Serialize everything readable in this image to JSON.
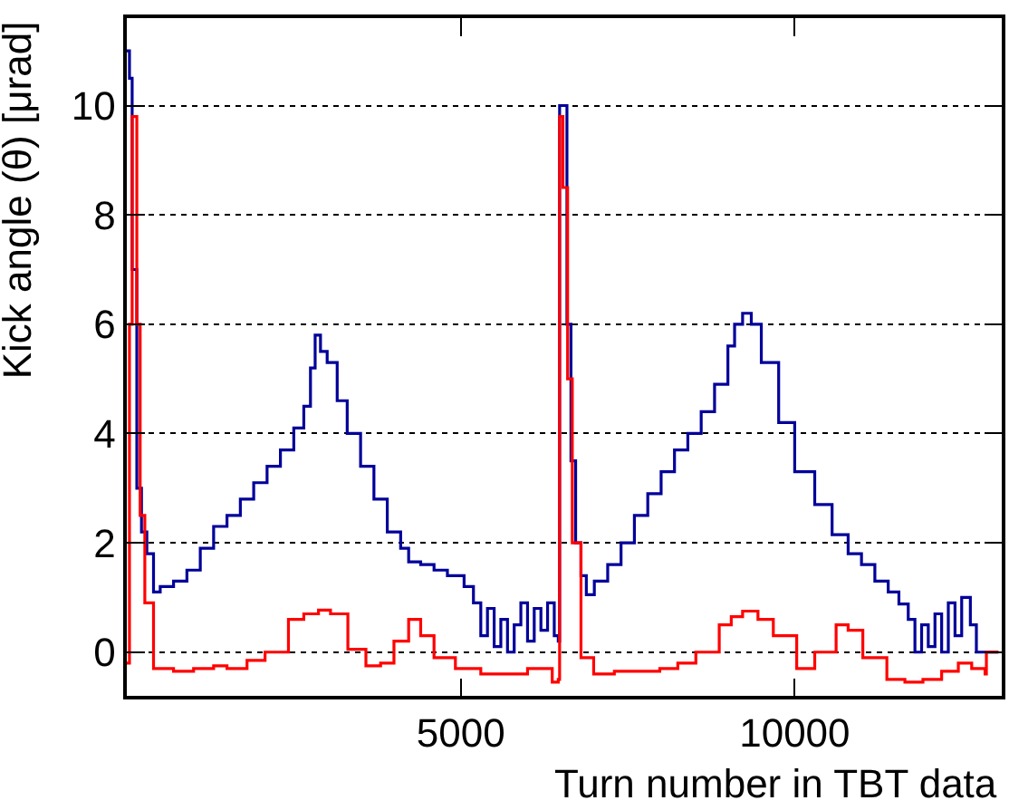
{
  "chart_data": {
    "type": "step",
    "xlabel": "Turn number in TBT data",
    "ylabel": "Kick angle (θ) [μrad]",
    "xlim": [
      0,
      13100
    ],
    "ylim": [
      -0.8,
      11.6
    ],
    "xticks": [
      5000,
      10000
    ],
    "yticks": [
      0,
      2,
      4,
      6,
      8,
      10
    ],
    "grid": "y",
    "line_style": "solid",
    "marker": "none",
    "series": [
      {
        "color": "#000099",
        "x": [
          0,
          40,
          80,
          150,
          220,
          300,
          400,
          500,
          700,
          900,
          1100,
          1300,
          1500,
          1700,
          1900,
          2100,
          2300,
          2500,
          2650,
          2750,
          2820,
          2900,
          3000,
          3150,
          3300,
          3500,
          3700,
          3900,
          4100,
          4220,
          4400,
          4600,
          4800,
          4920,
          5050,
          5190,
          5300,
          5400,
          5500,
          5600,
          5700,
          5800,
          5900,
          6000,
          6100,
          6200,
          6300,
          6400,
          6460,
          6480,
          6530,
          6590,
          6650,
          6720,
          6800,
          6880,
          7000,
          7200,
          7400,
          7600,
          7800,
          8000,
          8200,
          8400,
          8600,
          8800,
          9000,
          9100,
          9220,
          9350,
          9500,
          9760,
          10000,
          10300,
          10560,
          10800,
          11000,
          11200,
          11400,
          11560,
          11700,
          11800,
          11900,
          12000,
          12100,
          12200,
          12300,
          12400,
          12500,
          12630,
          12720,
          13050
        ],
        "values": [
          11.0,
          10.5,
          7.0,
          3.0,
          2.2,
          1.8,
          1.1,
          1.2,
          1.3,
          1.5,
          1.9,
          2.3,
          2.5,
          2.8,
          3.1,
          3.4,
          3.7,
          4.1,
          4.5,
          5.2,
          5.8,
          5.5,
          5.3,
          4.6,
          4.0,
          3.4,
          2.8,
          2.2,
          1.9,
          1.65,
          1.6,
          1.5,
          1.4,
          1.4,
          1.2,
          0.9,
          0.3,
          0.8,
          0.1,
          0.6,
          0.0,
          0.5,
          0.9,
          0.2,
          0.8,
          0.4,
          0.9,
          0.3,
          0.2,
          10.0,
          10.0,
          6.0,
          3.5,
          2.0,
          1.4,
          1.05,
          1.3,
          1.6,
          2.0,
          2.5,
          2.9,
          3.3,
          3.7,
          4.0,
          4.4,
          4.9,
          5.6,
          6.0,
          6.2,
          6.0,
          5.3,
          4.2,
          3.3,
          2.7,
          2.15,
          1.8,
          1.6,
          1.3,
          1.1,
          0.88,
          0.6,
          0.0,
          0.5,
          0.1,
          0.7,
          0.0,
          0.9,
          0.3,
          1.0,
          0.5,
          0.0,
          0.0
        ]
      },
      {
        "color": "#ff0000",
        "x": [
          0,
          40,
          80,
          150,
          200,
          270,
          400,
          700,
          1000,
          1300,
          1500,
          1800,
          2070,
          2420,
          2650,
          2870,
          3050,
          3310,
          3580,
          3800,
          4000,
          4220,
          4400,
          4600,
          4920,
          5300,
          5700,
          6000,
          6370,
          6460,
          6480,
          6530,
          6600,
          6670,
          6800,
          6990,
          7300,
          7600,
          7980,
          8250,
          8520,
          8870,
          9050,
          9220,
          9450,
          9680,
          10030,
          10300,
          10620,
          10800,
          11020,
          11380,
          11650,
          11920,
          12200,
          12450,
          12650,
          12850,
          12870,
          13050
        ],
        "values": [
          -0.2,
          6.0,
          9.8,
          6.0,
          2.5,
          0.9,
          -0.3,
          -0.35,
          -0.3,
          -0.25,
          -0.3,
          -0.15,
          0.0,
          0.6,
          0.7,
          0.77,
          0.7,
          0.05,
          -0.25,
          -0.2,
          0.2,
          0.6,
          0.3,
          -0.1,
          -0.3,
          -0.4,
          -0.4,
          -0.3,
          -0.55,
          -0.5,
          9.8,
          8.5,
          5.0,
          2.0,
          -0.1,
          -0.4,
          -0.35,
          -0.35,
          -0.3,
          -0.2,
          0.0,
          0.5,
          0.65,
          0.75,
          0.6,
          0.3,
          -0.3,
          0.0,
          0.5,
          0.4,
          -0.1,
          -0.5,
          -0.55,
          -0.5,
          -0.35,
          -0.2,
          -0.3,
          -0.4,
          0.0,
          0.0
        ]
      }
    ]
  }
}
